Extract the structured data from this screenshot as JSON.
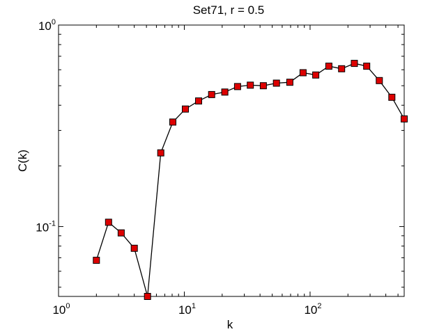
{
  "chart_data": {
    "type": "line",
    "title": "Set71, r = 0.5",
    "xlabel": "k",
    "ylabel": "C(k)",
    "xscale": "log",
    "yscale": "log",
    "xlim": [
      1,
      560
    ],
    "ylim": [
      0.045,
      1
    ],
    "grid": false,
    "legend": "none",
    "x_ticks": [
      {
        "value": 1,
        "base": "10",
        "exp": "0"
      },
      {
        "value": 10,
        "base": "10",
        "exp": "1"
      },
      {
        "value": 100,
        "base": "10",
        "exp": "2"
      }
    ],
    "y_ticks": [
      {
        "value": 0.1,
        "base": "10",
        "exp": "-1"
      },
      {
        "value": 1,
        "base": "10",
        "exp": "0"
      }
    ],
    "marker_color": "#dd0000",
    "line_color": "#000000",
    "series": [
      {
        "x": [
          2,
          2.5,
          3.15,
          4,
          5.1,
          6.5,
          8.1,
          10.2,
          13,
          16.5,
          21,
          26.5,
          33.5,
          42.5,
          54,
          69,
          88,
          111,
          141,
          178,
          225,
          282,
          355,
          447,
          560
        ],
        "y": [
          0.068,
          0.105,
          0.093,
          0.078,
          0.045,
          0.232,
          0.33,
          0.383,
          0.42,
          0.452,
          0.465,
          0.495,
          0.503,
          0.5,
          0.515,
          0.52,
          0.58,
          0.565,
          0.625,
          0.607,
          0.645,
          0.625,
          0.53,
          0.438,
          0.342
        ]
      }
    ]
  }
}
